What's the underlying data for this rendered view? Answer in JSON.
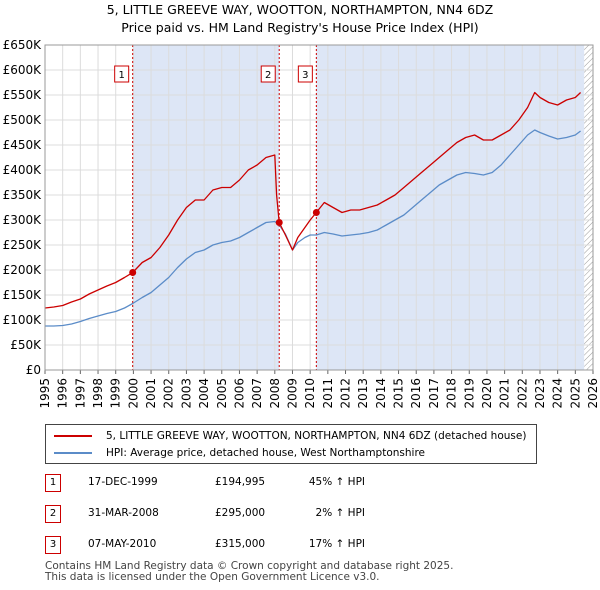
{
  "title_line1": "5, LITTLE GREEVE WAY, WOOTTON, NORTHAMPTON, NN4 6DZ",
  "title_line2": "Price paid vs. HM Land Registry's House Price Index (HPI)",
  "colors": {
    "property": "#cc0000",
    "hpi": "#5b8cc8",
    "shade": "#dde6f6",
    "marker_border": "#cc0000"
  },
  "legend": {
    "property_label": "5, LITTLE GREEVE WAY, WOOTTON, NORTHAMPTON, NN4 6DZ (detached house)",
    "hpi_label": "HPI: Average price, detached house, West Northamptonshire"
  },
  "transactions": [
    {
      "num": "1",
      "date": "17-DEC-1999",
      "price": "£194,995",
      "hpi": "45% ↑ HPI"
    },
    {
      "num": "2",
      "date": "31-MAR-2008",
      "price": "£295,000",
      "hpi": "2% ↑ HPI"
    },
    {
      "num": "3",
      "date": "07-MAY-2010",
      "price": "£315,000",
      "hpi": "17% ↑ HPI"
    }
  ],
  "footer": {
    "line1": "Contains HM Land Registry data © Crown copyright and database right 2025.",
    "line2": "This data is licensed under the Open Government Licence v3.0."
  },
  "chart_data": {
    "type": "line",
    "title": "5, LITTLE GREEVE WAY, WOOTTON, NORTHAMPTON, NN4 6DZ — Price paid vs. HM Land Registry's House Price Index (HPI)",
    "xlabel": "",
    "ylabel": "",
    "xlim": [
      1995,
      2026
    ],
    "ylim": [
      0,
      650000
    ],
    "y_ticks": [
      {
        "value": 0,
        "label": "£0"
      },
      {
        "value": 50000,
        "label": "£50K"
      },
      {
        "value": 100000,
        "label": "£100K"
      },
      {
        "value": 150000,
        "label": "£150K"
      },
      {
        "value": 200000,
        "label": "£200K"
      },
      {
        "value": 250000,
        "label": "£250K"
      },
      {
        "value": 300000,
        "label": "£300K"
      },
      {
        "value": 350000,
        "label": "£350K"
      },
      {
        "value": 400000,
        "label": "£400K"
      },
      {
        "value": 450000,
        "label": "£450K"
      },
      {
        "value": 500000,
        "label": "£500K"
      },
      {
        "value": 550000,
        "label": "£550K"
      },
      {
        "value": 600000,
        "label": "£600K"
      },
      {
        "value": 650000,
        "label": "£650K"
      }
    ],
    "x_ticks": [
      "1995",
      "1996",
      "1997",
      "1998",
      "1999",
      "2000",
      "2001",
      "2002",
      "2003",
      "2004",
      "2005",
      "2006",
      "2007",
      "2008",
      "2009",
      "2010",
      "2011",
      "2012",
      "2013",
      "2014",
      "2015",
      "2016",
      "2017",
      "2018",
      "2019",
      "2020",
      "2021",
      "2022",
      "2023",
      "2024",
      "2025",
      "2026"
    ],
    "grid": true,
    "shaded_ranges": [
      [
        1999.96,
        2008.25
      ],
      [
        2010.35,
        2025.5
      ]
    ],
    "future_hatch_from": 2025.5,
    "sales": [
      {
        "label": "1",
        "x": 1999.96,
        "y": 194995
      },
      {
        "label": "2",
        "x": 2008.25,
        "y": 295000
      },
      {
        "label": "3",
        "x": 2010.35,
        "y": 315000
      }
    ],
    "series": [
      {
        "name": "5, LITTLE GREEVE WAY, WOOTTON, NORTHAMPTON, NN4 6DZ (detached house)",
        "x": [
          1995.0,
          1995.5,
          1996.0,
          1996.5,
          1997.0,
          1997.5,
          1998.0,
          1998.5,
          1999.0,
          1999.5,
          1999.96,
          2000.5,
          2001.0,
          2001.5,
          2002.0,
          2002.5,
          2003.0,
          2003.5,
          2004.0,
          2004.5,
          2005.0,
          2005.5,
          2006.0,
          2006.5,
          2007.0,
          2007.5,
          2008.0,
          2008.1,
          2008.25,
          2008.6,
          2009.0,
          2009.3,
          2009.7,
          2010.0,
          2010.35,
          2010.8,
          2011.3,
          2011.8,
          2012.3,
          2012.8,
          2013.3,
          2013.8,
          2014.3,
          2014.8,
          2015.3,
          2015.8,
          2016.3,
          2016.8,
          2017.3,
          2017.8,
          2018.3,
          2018.8,
          2019.3,
          2019.8,
          2020.3,
          2020.8,
          2021.3,
          2021.8,
          2022.3,
          2022.7,
          2023.0,
          2023.5,
          2024.0,
          2024.5,
          2025.0,
          2025.3
        ],
        "values": [
          124000,
          126000,
          129000,
          136000,
          142000,
          152000,
          160000,
          168000,
          175000,
          185000,
          194995,
          215000,
          225000,
          245000,
          270000,
          300000,
          325000,
          340000,
          340000,
          360000,
          365000,
          365000,
          380000,
          400000,
          410000,
          425000,
          430000,
          350000,
          295000,
          270000,
          240000,
          265000,
          285000,
          300000,
          315000,
          335000,
          325000,
          315000,
          320000,
          320000,
          325000,
          330000,
          340000,
          350000,
          365000,
          380000,
          395000,
          410000,
          425000,
          440000,
          455000,
          465000,
          470000,
          460000,
          460000,
          470000,
          480000,
          500000,
          525000,
          555000,
          545000,
          535000,
          530000,
          540000,
          545000,
          555000
        ]
      },
      {
        "name": "HPI: Average price, detached house, West Northamptonshire",
        "x": [
          1995.0,
          1995.5,
          1996.0,
          1996.5,
          1997.0,
          1997.5,
          1998.0,
          1998.5,
          1999.0,
          1999.5,
          1999.96,
          2000.5,
          2001.0,
          2001.5,
          2002.0,
          2002.5,
          2003.0,
          2003.5,
          2004.0,
          2004.5,
          2005.0,
          2005.5,
          2006.0,
          2006.5,
          2007.0,
          2007.5,
          2008.0,
          2008.25,
          2008.6,
          2009.0,
          2009.3,
          2009.7,
          2010.0,
          2010.35,
          2010.8,
          2011.3,
          2011.8,
          2012.3,
          2012.8,
          2013.3,
          2013.8,
          2014.3,
          2014.8,
          2015.3,
          2015.8,
          2016.3,
          2016.8,
          2017.3,
          2017.8,
          2018.3,
          2018.8,
          2019.3,
          2019.8,
          2020.3,
          2020.8,
          2021.3,
          2021.8,
          2022.3,
          2022.7,
          2023.0,
          2023.5,
          2024.0,
          2024.5,
          2025.0,
          2025.3
        ],
        "values": [
          88000,
          88000,
          89000,
          92000,
          97000,
          103000,
          108000,
          113000,
          117000,
          124000,
          133000,
          145000,
          155000,
          170000,
          185000,
          205000,
          222000,
          235000,
          240000,
          250000,
          255000,
          258000,
          265000,
          275000,
          285000,
          295000,
          297000,
          290000,
          272000,
          240000,
          255000,
          265000,
          270000,
          270000,
          275000,
          272000,
          268000,
          270000,
          272000,
          275000,
          280000,
          290000,
          300000,
          310000,
          325000,
          340000,
          355000,
          370000,
          380000,
          390000,
          395000,
          393000,
          390000,
          395000,
          410000,
          430000,
          450000,
          470000,
          480000,
          475000,
          468000,
          462000,
          465000,
          470000,
          478000
        ]
      }
    ]
  }
}
